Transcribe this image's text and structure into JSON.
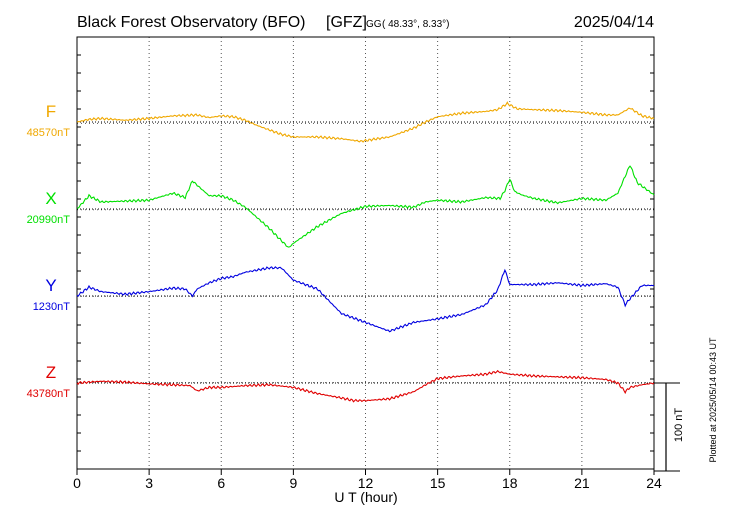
{
  "header": {
    "title": "Black Forest Observatory (BFO)",
    "gfz": "[GFZ]",
    "gg": "GG",
    "coords": "( 48.33°,   8.33°)",
    "date": "2025/04/14"
  },
  "footer": {
    "xlabel": "U T (hour)",
    "scale_label": "100 nT",
    "plotted": "Plotted at 2025/05/14 00:43 UT"
  },
  "chart_data": {
    "type": "line",
    "x_unit": "hour (UT)",
    "xlim": [
      0,
      24
    ],
    "x_ticks": [
      "0",
      "3",
      "6",
      "9",
      "12",
      "15",
      "18",
      "21",
      "24"
    ],
    "scale_bar_nT": 100,
    "grid": "dotted",
    "colors": {
      "F": "#f0a800",
      "X": "#00e000",
      "Y": "#0000e0",
      "Z": "#e00000"
    },
    "series": [
      {
        "name": "F",
        "baseline_label": "48570nT",
        "baseline_nT": 48570,
        "points": [
          [
            0,
            48570
          ],
          [
            0.5,
            48573
          ],
          [
            1,
            48574
          ],
          [
            2,
            48572
          ],
          [
            3,
            48574
          ],
          [
            4,
            48577
          ],
          [
            5,
            48578
          ],
          [
            5.5,
            48575
          ],
          [
            6,
            48577
          ],
          [
            6.5,
            48576
          ],
          [
            7,
            48572
          ],
          [
            7.5,
            48566
          ],
          [
            8,
            48561
          ],
          [
            8.5,
            48556
          ],
          [
            9,
            48553
          ],
          [
            10,
            48553
          ],
          [
            11,
            48551
          ],
          [
            11.8,
            48548
          ],
          [
            12.5,
            48551
          ],
          [
            13,
            48553
          ],
          [
            14,
            48563
          ],
          [
            14.5,
            48570
          ],
          [
            15,
            48576
          ],
          [
            16,
            48580
          ],
          [
            17,
            48582
          ],
          [
            17.5,
            48584
          ],
          [
            17.9,
            48591
          ],
          [
            18.3,
            48585
          ],
          [
            19,
            48584
          ],
          [
            20,
            48583
          ],
          [
            21,
            48581
          ],
          [
            22,
            48578
          ],
          [
            22.5,
            48578
          ],
          [
            23,
            48586
          ],
          [
            23.5,
            48577
          ],
          [
            24,
            48574
          ]
        ]
      },
      {
        "name": "X",
        "baseline_label": "20990nT",
        "baseline_nT": 20990,
        "points": [
          [
            0,
            20990
          ],
          [
            0.5,
            21005
          ],
          [
            1,
            20998
          ],
          [
            2,
            20999
          ],
          [
            3,
            21000
          ],
          [
            4,
            21008
          ],
          [
            4.5,
            21003
          ],
          [
            4.8,
            21022
          ],
          [
            5,
            21017
          ],
          [
            5.5,
            21005
          ],
          [
            6,
            21005
          ],
          [
            6.5,
            21000
          ],
          [
            7,
            20992
          ],
          [
            7.5,
            20980
          ],
          [
            8,
            20968
          ],
          [
            8.5,
            20954
          ],
          [
            8.8,
            20946
          ],
          [
            9,
            20951
          ],
          [
            10,
            20970
          ],
          [
            11,
            20985
          ],
          [
            12,
            20993
          ],
          [
            13,
            20994
          ],
          [
            14,
            20992
          ],
          [
            14.5,
            20998
          ],
          [
            15,
            21000
          ],
          [
            16,
            20998
          ],
          [
            17,
            21003
          ],
          [
            17.6,
            21002
          ],
          [
            17.8,
            21011
          ],
          [
            18,
            21024
          ],
          [
            18.2,
            21010
          ],
          [
            18.5,
            21006
          ],
          [
            19,
            21002
          ],
          [
            20,
            20997
          ],
          [
            21,
            21002
          ],
          [
            22,
            21000
          ],
          [
            22.5,
            21008
          ],
          [
            23,
            21040
          ],
          [
            23.3,
            21020
          ],
          [
            24,
            21006
          ]
        ]
      },
      {
        "name": "Y",
        "baseline_label": "1230nT",
        "baseline_nT": 1230,
        "points": [
          [
            0,
            1230
          ],
          [
            0.5,
            1240
          ],
          [
            1,
            1235
          ],
          [
            2,
            1232
          ],
          [
            3,
            1235
          ],
          [
            4,
            1239
          ],
          [
            4.5,
            1238
          ],
          [
            4.8,
            1230
          ],
          [
            5,
            1238
          ],
          [
            5.5,
            1245
          ],
          [
            6,
            1250
          ],
          [
            6.5,
            1252
          ],
          [
            7,
            1257
          ],
          [
            8,
            1262
          ],
          [
            8.5,
            1262
          ],
          [
            9,
            1248
          ],
          [
            10,
            1238
          ],
          [
            11,
            1210
          ],
          [
            12,
            1200
          ],
          [
            13,
            1190
          ],
          [
            13.5,
            1195
          ],
          [
            14,
            1200
          ],
          [
            15,
            1204
          ],
          [
            16,
            1209
          ],
          [
            17,
            1220
          ],
          [
            17.5,
            1237
          ],
          [
            17.8,
            1260
          ],
          [
            18,
            1243
          ],
          [
            19,
            1243
          ],
          [
            20,
            1245
          ],
          [
            21,
            1242
          ],
          [
            22,
            1244
          ],
          [
            22.5,
            1240
          ],
          [
            22.8,
            1220
          ],
          [
            23,
            1227
          ],
          [
            23.5,
            1242
          ],
          [
            24,
            1242
          ]
        ]
      },
      {
        "name": "Z",
        "baseline_label": "43780nT",
        "baseline_nT": 43780,
        "points": [
          [
            0,
            43780
          ],
          [
            1,
            43782
          ],
          [
            2,
            43781
          ],
          [
            3,
            43779
          ],
          [
            4,
            43778
          ],
          [
            4.7,
            43777
          ],
          [
            5,
            43771
          ],
          [
            5.5,
            43775
          ],
          [
            6,
            43775
          ],
          [
            7,
            43777
          ],
          [
            8,
            43778
          ],
          [
            9,
            43775
          ],
          [
            10,
            43768
          ],
          [
            11,
            43763
          ],
          [
            11.5,
            43760
          ],
          [
            12,
            43760
          ],
          [
            13,
            43762
          ],
          [
            14,
            43770
          ],
          [
            14.5,
            43778
          ],
          [
            15,
            43785
          ],
          [
            16,
            43788
          ],
          [
            17,
            43790
          ],
          [
            17.5,
            43793
          ],
          [
            18,
            43790
          ],
          [
            19,
            43788
          ],
          [
            20,
            43787
          ],
          [
            21,
            43786
          ],
          [
            22,
            43784
          ],
          [
            22.5,
            43780
          ],
          [
            22.8,
            43770
          ],
          [
            23,
            43775
          ],
          [
            23.5,
            43778
          ],
          [
            24,
            43780
          ]
        ]
      }
    ]
  }
}
